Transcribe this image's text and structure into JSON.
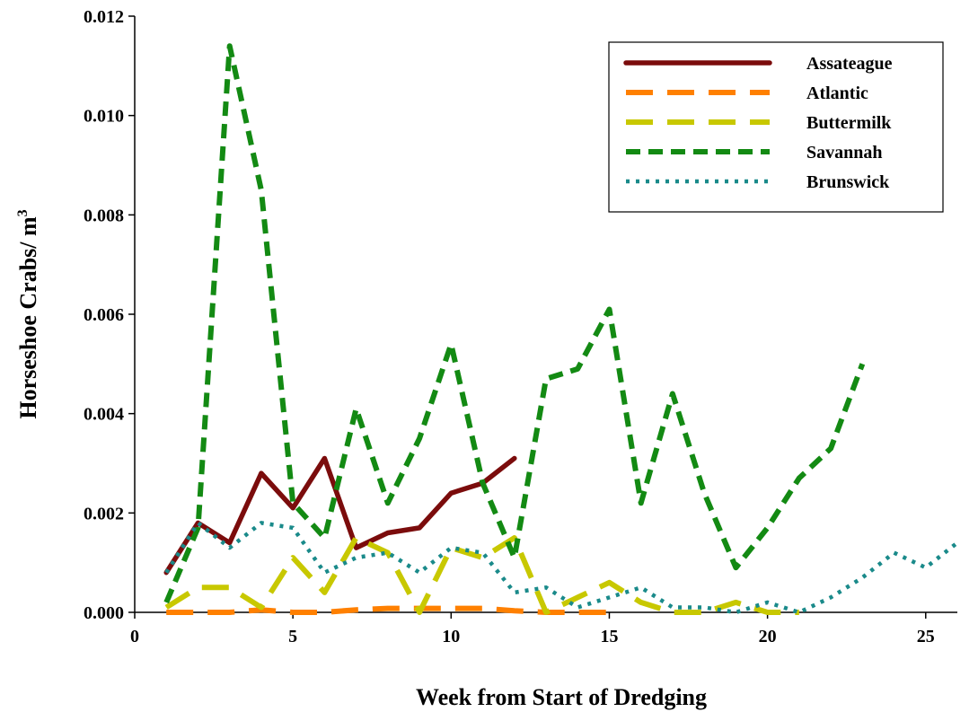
{
  "chart_data": {
    "type": "line",
    "xlabel": "Week from Start of Dredging",
    "ylabel_main": "Horseshoe Crabs/ m",
    "ylabel_sup": "3",
    "xlim": [
      0,
      26
    ],
    "ylim": [
      0,
      0.012
    ],
    "xticks": [
      0,
      5,
      10,
      15,
      20,
      25
    ],
    "yticks": [
      0.0,
      0.002,
      0.004,
      0.006,
      0.008,
      0.01,
      0.012
    ],
    "ytick_labels": [
      "0.000",
      "0.002",
      "0.004",
      "0.006",
      "0.008",
      "0.010",
      "0.012"
    ],
    "grid": false,
    "legend_position": "top-right",
    "series": [
      {
        "name": "Assateague",
        "color": "#7b0c0c",
        "dash": "solid",
        "x": [
          1,
          2,
          3,
          4,
          5,
          6,
          7,
          8,
          9,
          10,
          11,
          12
        ],
        "y": [
          0.0008,
          0.0018,
          0.0014,
          0.0028,
          0.0021,
          0.0031,
          0.0013,
          0.0016,
          0.0017,
          0.0024,
          0.0026,
          0.0031
        ]
      },
      {
        "name": "Atlantic",
        "color": "#ff8000",
        "dash": "long-dash",
        "x": [
          1,
          2,
          3,
          4,
          5,
          6,
          7,
          8,
          9,
          10,
          11,
          12,
          13,
          14,
          15
        ],
        "y": [
          0.0,
          0.0,
          0.0,
          5e-05,
          0.0,
          0.0,
          5e-05,
          8e-05,
          8e-05,
          8e-05,
          8e-05,
          3e-05,
          0.0,
          0.0,
          0.0
        ]
      },
      {
        "name": "Buttermilk",
        "color": "#c8c800",
        "dash": "long-dash",
        "x": [
          1,
          2,
          3,
          4,
          5,
          6,
          7,
          8,
          9,
          10,
          11,
          12,
          13,
          14,
          15,
          16,
          17,
          18,
          19,
          20,
          21
        ],
        "y": [
          0.0001,
          0.0005,
          0.0005,
          0.0001,
          0.0011,
          0.0004,
          0.0015,
          0.0012,
          0.0,
          0.0013,
          0.0011,
          0.0015,
          0.0,
          0.0003,
          0.0006,
          0.0002,
          0.0,
          0.0,
          0.0002,
          0.0,
          0.0
        ]
      },
      {
        "name": "Savannah",
        "color": "#138a13",
        "dash": "dash",
        "x": [
          1,
          2,
          3,
          4,
          5,
          6,
          7,
          8,
          9,
          10,
          11,
          12,
          13,
          14,
          15,
          16,
          17,
          18,
          19,
          20,
          21,
          22,
          23
        ],
        "y": [
          0.0002,
          0.0017,
          0.0114,
          0.0085,
          0.0022,
          0.0015,
          0.0041,
          0.0022,
          0.0035,
          0.0054,
          0.0026,
          0.0011,
          0.0047,
          0.0049,
          0.0061,
          0.0022,
          0.0044,
          0.0024,
          0.0009,
          0.0017,
          0.0027,
          0.0033,
          0.005
        ]
      },
      {
        "name": "Brunswick",
        "color": "#1a8a8a",
        "dash": "dotted",
        "x": [
          1,
          2,
          3,
          4,
          5,
          6,
          7,
          8,
          9,
          10,
          11,
          12,
          13,
          14,
          15,
          16,
          17,
          18,
          19,
          20,
          21,
          22,
          23,
          24,
          25,
          26
        ],
        "y": [
          0.0008,
          0.0018,
          0.0013,
          0.0018,
          0.0017,
          0.0008,
          0.0011,
          0.0012,
          0.0008,
          0.0013,
          0.0012,
          0.0004,
          0.0005,
          0.0001,
          0.0003,
          0.0005,
          0.0001,
          0.0001,
          0.0,
          0.0002,
          0.0,
          0.0003,
          0.0007,
          0.0012,
          0.0009,
          0.0014
        ]
      }
    ]
  }
}
